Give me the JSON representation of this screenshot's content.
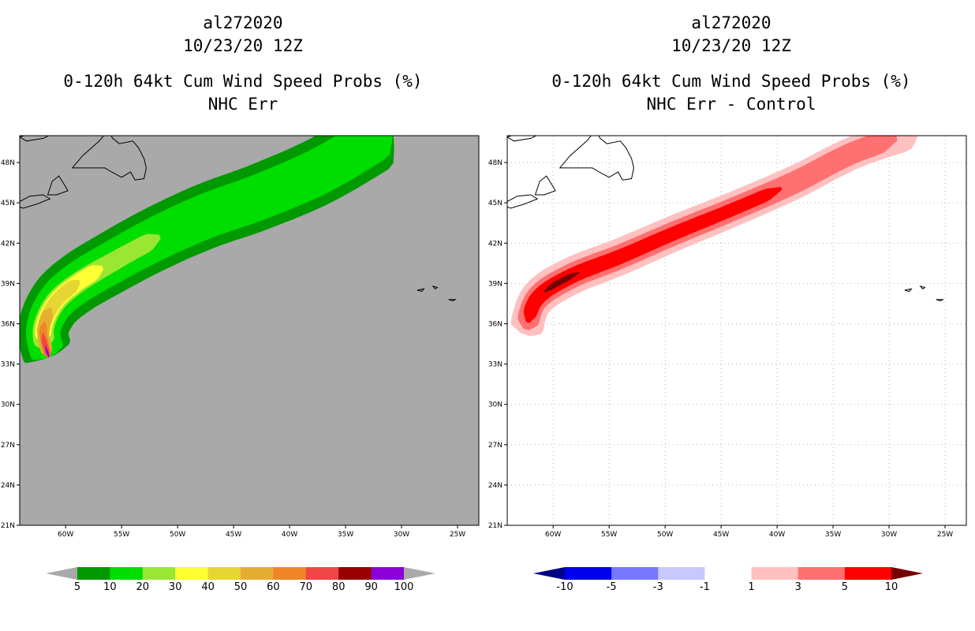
{
  "colors": {
    "left_background": "#a9a9a9",
    "right_background": "#ffffff",
    "coast": "#000000",
    "grid": "#b0b0b0"
  },
  "chart_data": [
    {
      "type": "heatmap",
      "title_lines": [
        "al272020",
        "10/23/20 12Z",
        "0-120h 64kt Cum Wind Speed Probs (%)",
        "NHC Err"
      ],
      "x_ticks": [
        "60W",
        "55W",
        "50W",
        "45W",
        "40W",
        "35W",
        "30W",
        "25W"
      ],
      "x_tick_values": [
        -60,
        -55,
        -50,
        -45,
        -40,
        -35,
        -30,
        -25
      ],
      "y_ticks": [
        "21N",
        "24N",
        "27N",
        "30N",
        "33N",
        "36N",
        "39N",
        "42N",
        "45N",
        "48N"
      ],
      "y_tick_values": [
        21,
        24,
        27,
        30,
        33,
        36,
        39,
        42,
        45,
        48
      ],
      "xlim": [
        -64.1,
        -23.1
      ],
      "ylim": [
        21,
        50
      ],
      "grid": false,
      "colorbar": {
        "labels": [
          "5",
          "10",
          "20",
          "30",
          "40",
          "50",
          "60",
          "70",
          "80",
          "90",
          "100"
        ],
        "colors": [
          "#009900",
          "#00dd00",
          "#99e633",
          "#ffff33",
          "#e6d633",
          "#e6ad33",
          "#f08528",
          "#f04646",
          "#990000",
          "#8c00d9"
        ],
        "end_color": "#a9a9a9"
      },
      "track": {
        "points": [
          [
            -61.5,
            33.5
          ],
          [
            -62.0,
            35.5
          ],
          [
            -61.0,
            37.5
          ],
          [
            -59.0,
            39.0
          ],
          [
            -56.0,
            40.5
          ],
          [
            -52.0,
            42.3
          ],
          [
            -47.5,
            44.0
          ],
          [
            -42.5,
            45.5
          ],
          [
            -37.0,
            47.5
          ],
          [
            -31.0,
            50.5
          ]
        ],
        "bands": [
          {
            "level": 5,
            "color": "#009900",
            "width": [
              2.2,
              2.6
            ],
            "start": 0.0
          },
          {
            "level": 10,
            "color": "#00dd00",
            "width": [
              1.5,
              1.8
            ],
            "start": 0.01
          },
          {
            "level": 20,
            "color": "#99e633",
            "width": [
              1.0,
              0.4
            ],
            "start": 0.05,
            "end": 0.56
          },
          {
            "level": 30,
            "color": "#ffff33",
            "width": [
              0.8,
              0.3
            ],
            "start": 0.07,
            "end": 0.42
          },
          {
            "level": 40,
            "color": "#e6d633",
            "width": [
              0.65,
              0.2
            ],
            "start": 0.08,
            "end": 0.34
          },
          {
            "level": 50,
            "color": "#e6ad33",
            "width": [
              0.55,
              0.25
            ],
            "start": 0.02,
            "end": 0.2
          },
          {
            "level": 60,
            "color": "#f08528",
            "width": [
              0.35,
              0.2
            ],
            "start": 0.01,
            "end": 0.14
          },
          {
            "level": 70,
            "color": "#f04646",
            "width": [
              0.22,
              0.15
            ],
            "start": 0.0,
            "end": 0.1
          },
          {
            "level": 90,
            "color": "#8c00d9",
            "width": [
              0.1,
              0.05
            ],
            "start": 0.0,
            "end": 0.05
          }
        ]
      }
    },
    {
      "type": "heatmap",
      "title_lines": [
        "al272020",
        "10/23/20 12Z",
        "0-120h 64kt Cum Wind Speed Probs (%)",
        "NHC Err - Control"
      ],
      "x_ticks": [
        "60W",
        "55W",
        "50W",
        "45W",
        "40W",
        "35W",
        "30W",
        "25W"
      ],
      "x_tick_values": [
        -60,
        -55,
        -50,
        -45,
        -40,
        -35,
        -30,
        -25
      ],
      "y_ticks": [
        "21N",
        "24N",
        "27N",
        "30N",
        "33N",
        "36N",
        "39N",
        "42N",
        "45N",
        "48N"
      ],
      "y_tick_values": [
        21,
        24,
        27,
        30,
        33,
        36,
        39,
        42,
        45,
        48
      ],
      "xlim": [
        -64.1,
        -23.1
      ],
      "ylim": [
        21,
        50
      ],
      "grid": true,
      "colorbar": {
        "labels": [
          "-10",
          "-5",
          "-3",
          "-1",
          "1",
          "3",
          "5",
          "10"
        ],
        "colors": [
          "#0000ee",
          "#7777ff",
          "#c8c8ff",
          "#ffffff",
          "#ffc0c0",
          "#ff7070",
          "#ff0000"
        ],
        "low_end_color": "#000088",
        "high_end_color": "#770000"
      },
      "track": {
        "points": [
          [
            -62.5,
            35.2
          ],
          [
            -61.5,
            37.8
          ],
          [
            -58.5,
            39.5
          ],
          [
            -54.0,
            41.0
          ],
          [
            -49.0,
            42.8
          ],
          [
            -44.0,
            44.5
          ],
          [
            -38.5,
            46.5
          ],
          [
            -33.0,
            48.8
          ],
          [
            -27.5,
            50.3
          ]
        ],
        "bands": [
          {
            "level": 1,
            "color": "#ffc0c0",
            "width": [
              1.5,
              1.2
            ],
            "start": 0.0,
            "end": 1.0
          },
          {
            "level": 3,
            "color": "#ff7070",
            "width": [
              1.0,
              0.8
            ],
            "start": 0.03,
            "end": 0.95
          },
          {
            "level": 5,
            "color": "#ff0000",
            "width": [
              0.65,
              0.4
            ],
            "start": 0.05,
            "end": 0.72
          },
          {
            "level": 10,
            "color": "#770000",
            "width": [
              0.25,
              0.15
            ],
            "start": 0.17,
            "end": 0.27
          }
        ]
      }
    }
  ]
}
